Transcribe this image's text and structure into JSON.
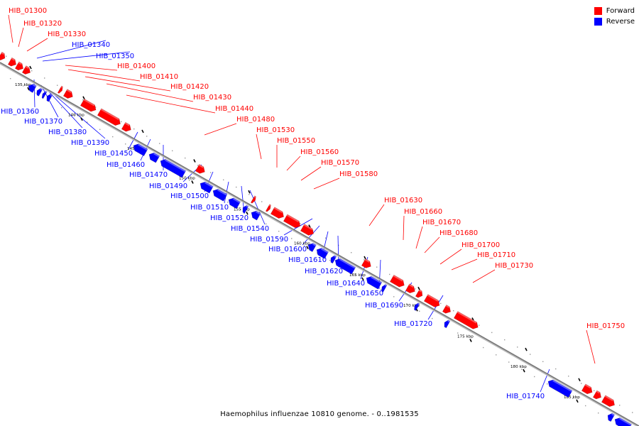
{
  "caption": "Haemophilus influenzae 10810 genome. - 0..1981535",
  "colors": {
    "forward": "#ff0000",
    "reverse": "#0000ff",
    "backbone": "#777777"
  },
  "legend": [
    {
      "label": "Forward",
      "color": "#ff0000"
    },
    {
      "label": "Reverse",
      "color": "#0000ff"
    }
  ],
  "chart_data": {
    "type": "diagram",
    "ticks": [
      "135 kbp",
      "140 kbp",
      "145 kbp",
      "150 kbp",
      "155 kbp",
      "160 kbp",
      "165 kbp",
      "170 kbp",
      "175 kbp",
      "180 kbp",
      "185 kbp"
    ],
    "forward_genes": [
      "HIB_01300",
      "HIB_01320",
      "HIB_01330",
      "HIB_01400",
      "HIB_01410",
      "HIB_01420",
      "HIB_01430",
      "HIB_01440",
      "HIB_01480",
      "HIB_01530",
      "HIB_01550",
      "HIB_01560",
      "HIB_01570",
      "HIB_01580",
      "HIB_01630",
      "HIB_01660",
      "HIB_01670",
      "HIB_01680",
      "HIB_01700",
      "HIB_01710",
      "HIB_01730",
      "HIB_01750"
    ],
    "reverse_genes": [
      "HIB_01340",
      "HIB_01350",
      "HIB_01360",
      "HIB_01370",
      "HIB_01380",
      "HIB_01390",
      "HIB_01450",
      "HIB_01460",
      "HIB_01470",
      "HIB_01490",
      "HIB_01500",
      "HIB_01510",
      "HIB_01520",
      "HIB_01540",
      "HIB_01590",
      "HIB_01600",
      "HIB_01610",
      "HIB_01620",
      "HIB_01640",
      "HIB_01650",
      "HIB_01690",
      "HIB_01720",
      "HIB_01740"
    ]
  }
}
